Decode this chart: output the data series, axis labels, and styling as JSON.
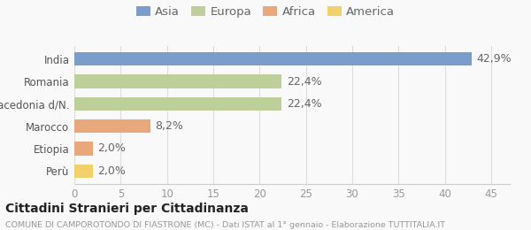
{
  "categories": [
    "India",
    "Romania",
    "Macedonia d/N.",
    "Marocco",
    "Etiopia",
    "Perù"
  ],
  "values": [
    42.9,
    22.4,
    22.4,
    8.2,
    2.0,
    2.0
  ],
  "labels": [
    "42,9%",
    "22,4%",
    "22,4%",
    "8,2%",
    "2,0%",
    "2,0%"
  ],
  "colors": [
    "#7b9dc9",
    "#bdd09a",
    "#bdd09a",
    "#e8a87c",
    "#e8a87c",
    "#f2d06b"
  ],
  "legend_labels": [
    "Asia",
    "Europa",
    "Africa",
    "America"
  ],
  "legend_colors": [
    "#7b9dc9",
    "#bdd09a",
    "#e8a87c",
    "#f2d06b"
  ],
  "xlim": [
    0,
    47
  ],
  "xticks": [
    0,
    5,
    10,
    15,
    20,
    25,
    30,
    35,
    40,
    45
  ],
  "title_main": "Cittadini Stranieri per Cittadinanza",
  "title_sub": "COMUNE DI CAMPOROTONDO DI FIASTRONE (MC) - Dati ISTAT al 1° gennaio - Elaborazione TUTTITALIA.IT",
  "background_color": "#f9f9f9",
  "bar_height": 0.6,
  "label_fontsize": 9,
  "tick_fontsize": 8.5,
  "legend_fontsize": 9.5
}
